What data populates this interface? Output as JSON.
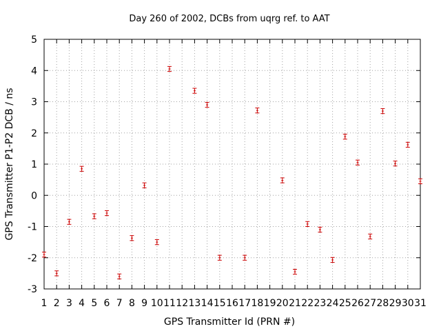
{
  "chart_data": {
    "type": "scatter",
    "title": "Day 260 of 2002, DCBs from uqrg ref. to AAT",
    "xlabel": "GPS Transmitter Id (PRN #)",
    "ylabel": "GPS Transmitter P1-P2 DCB / ns",
    "xlim": [
      1,
      31
    ],
    "ylim": [
      -3,
      5
    ],
    "x_ticks": [
      1,
      2,
      3,
      4,
      5,
      6,
      7,
      8,
      9,
      10,
      11,
      12,
      13,
      14,
      15,
      16,
      17,
      18,
      19,
      20,
      21,
      22,
      23,
      24,
      25,
      26,
      27,
      28,
      29,
      30,
      31
    ],
    "y_ticks": [
      -3,
      -2,
      -1,
      0,
      1,
      2,
      3,
      4,
      5
    ],
    "grid": true,
    "marker_color": "#cc0000",
    "error_half_width": 0.08,
    "points": [
      {
        "x": 1,
        "y": -1.9
      },
      {
        "x": 2,
        "y": -2.5
      },
      {
        "x": 3,
        "y": -0.85
      },
      {
        "x": 4,
        "y": 0.85
      },
      {
        "x": 5,
        "y": -0.67
      },
      {
        "x": 6,
        "y": -0.57
      },
      {
        "x": 7,
        "y": -2.6
      },
      {
        "x": 8,
        "y": -1.37
      },
      {
        "x": 9,
        "y": 0.32
      },
      {
        "x": 10,
        "y": -1.5
      },
      {
        "x": 11,
        "y": 4.05
      },
      {
        "x": 13,
        "y": 3.35
      },
      {
        "x": 14,
        "y": 2.9
      },
      {
        "x": 15,
        "y": -2.0
      },
      {
        "x": 17,
        "y": -2.0
      },
      {
        "x": 18,
        "y": 2.72
      },
      {
        "x": 20,
        "y": 0.48
      },
      {
        "x": 21,
        "y": -2.45
      },
      {
        "x": 22,
        "y": -0.92
      },
      {
        "x": 23,
        "y": -1.1
      },
      {
        "x": 24,
        "y": -2.07
      },
      {
        "x": 25,
        "y": 1.88
      },
      {
        "x": 26,
        "y": 1.05
      },
      {
        "x": 27,
        "y": -1.32
      },
      {
        "x": 28,
        "y": 2.7
      },
      {
        "x": 29,
        "y": 1.02
      },
      {
        "x": 30,
        "y": 1.62
      },
      {
        "x": 31,
        "y": 0.45
      }
    ]
  }
}
